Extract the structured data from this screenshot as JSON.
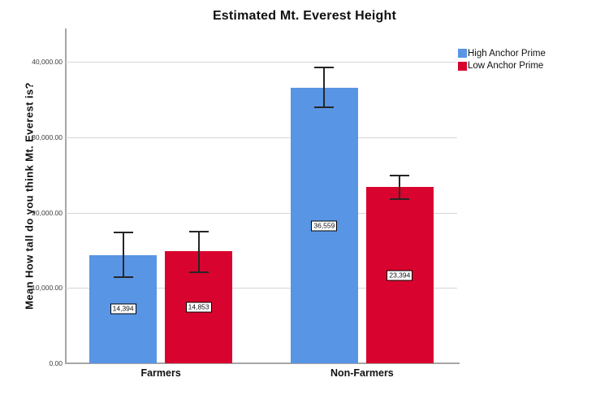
{
  "chart_data": {
    "type": "bar",
    "title": "Estimated Mt. Everest Height",
    "ylabel": "Mean How tall do you think Mt. Everest is?",
    "xlabel": "",
    "categories": [
      "Farmers",
      "Non-Farmers"
    ],
    "series": [
      {
        "name": "High Anchor Prime",
        "color": "#5895E4",
        "values": [
          14394,
          36559
        ],
        "value_labels": [
          "14,394",
          "36,559"
        ],
        "error_low": [
          11450,
          33950
        ],
        "error_high": [
          17400,
          39240
        ]
      },
      {
        "name": "Low Anchor Prime",
        "color": "#D8042F",
        "values": [
          14853,
          23394
        ],
        "value_labels": [
          "14,853",
          "23,394"
        ],
        "error_low": [
          12110,
          21840
        ],
        "error_high": [
          17520,
          24970
        ]
      }
    ],
    "ylim": [
      0,
      44444
    ],
    "yticks": [
      {
        "value": 0,
        "label": "0.00"
      },
      {
        "value": 10000,
        "label": "10,000.00"
      },
      {
        "value": 20000,
        "label": "20,000.00"
      },
      {
        "value": 30000,
        "label": "30,000.00"
      },
      {
        "value": 40000,
        "label": "40,000.00"
      }
    ],
    "grid": true,
    "legend_position": "top-right",
    "style": {
      "gridline_color": "#D7D7D7",
      "axis_color": "#A6A6A6",
      "error_bar_color": "#262626",
      "background": "#FFFFFF"
    }
  }
}
